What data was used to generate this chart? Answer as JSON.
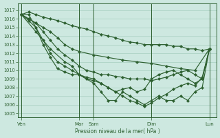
{
  "bg_color": "#cde8e0",
  "grid_color": "#9dc8b8",
  "line_color": "#2d6030",
  "ylabel": "Pression niveau de la mer( hPa )",
  "ylim": [
    1004.5,
    1017.8
  ],
  "yticks": [
    1005,
    1006,
    1007,
    1008,
    1009,
    1010,
    1011,
    1012,
    1013,
    1014,
    1015,
    1016,
    1017
  ],
  "xtick_labels": [
    "Ven",
    "Mar",
    "Sam",
    "Dim",
    "Lun"
  ],
  "xtick_positions": [
    0,
    8,
    10,
    18,
    26
  ],
  "x_vlines": [
    0,
    8,
    10,
    18,
    26
  ],
  "xlim": [
    -0.5,
    27
  ],
  "series1_x": [
    0,
    1,
    2,
    3,
    4,
    5,
    6,
    7,
    8,
    9,
    10,
    11,
    12,
    13,
    14,
    15,
    16,
    17,
    18,
    19,
    20,
    21,
    22,
    23,
    24,
    25,
    26
  ],
  "series1_y": [
    1016.5,
    1016.8,
    1016.5,
    1016.2,
    1016.0,
    1015.8,
    1015.5,
    1015.2,
    1015.0,
    1014.8,
    1014.5,
    1014.2,
    1014.0,
    1013.8,
    1013.5,
    1013.3,
    1013.2,
    1013.0,
    1013.0,
    1013.0,
    1013.0,
    1012.8,
    1012.8,
    1012.5,
    1012.5,
    1012.3,
    1012.5
  ],
  "series2_x": [
    0,
    1,
    2,
    3,
    4,
    5,
    6,
    7,
    8,
    10,
    12,
    14,
    16,
    18,
    20,
    22,
    24,
    26
  ],
  "series2_y": [
    1016.5,
    1016.0,
    1015.5,
    1015.0,
    1014.5,
    1013.8,
    1013.0,
    1012.5,
    1012.2,
    1011.8,
    1011.5,
    1011.2,
    1011.0,
    1010.8,
    1010.5,
    1010.2,
    1010.0,
    1012.5
  ],
  "series3_x": [
    0,
    1,
    2,
    3,
    4,
    5,
    6,
    7,
    8,
    9,
    10,
    11,
    12,
    13,
    14,
    15,
    16,
    17,
    18,
    19,
    20,
    21,
    22,
    23,
    24,
    25,
    26
  ],
  "series3_y": [
    1016.5,
    1016.0,
    1015.5,
    1014.5,
    1013.5,
    1012.5,
    1011.8,
    1011.2,
    1010.5,
    1010.0,
    1009.8,
    1009.5,
    1009.5,
    1009.3,
    1009.2,
    1009.0,
    1009.0,
    1009.0,
    1008.8,
    1009.0,
    1009.2,
    1009.5,
    1009.8,
    1010.0,
    1009.5,
    1009.0,
    1012.5
  ],
  "series4_x": [
    0,
    1,
    2,
    3,
    4,
    5,
    6,
    7,
    8,
    9,
    10,
    11,
    12,
    13,
    14,
    15,
    16,
    17,
    18,
    19,
    20,
    21,
    22,
    23,
    24,
    25,
    26
  ],
  "series4_y": [
    1016.5,
    1015.8,
    1015.0,
    1013.5,
    1012.0,
    1011.0,
    1010.5,
    1010.0,
    1009.5,
    1009.2,
    1009.0,
    1008.5,
    1008.0,
    1007.5,
    1007.8,
    1008.0,
    1007.5,
    1007.8,
    1009.0,
    1009.5,
    1009.8,
    1010.0,
    1009.5,
    1009.0,
    1008.5,
    1009.0,
    1012.5
  ],
  "series5_x": [
    0,
    1,
    2,
    3,
    4,
    5,
    6,
    7,
    8,
    9,
    10,
    11,
    12,
    13,
    14,
    15,
    16,
    17,
    18,
    19,
    20,
    21,
    22,
    23,
    24,
    25,
    26
  ],
  "series5_y": [
    1016.5,
    1016.5,
    1015.0,
    1013.0,
    1011.5,
    1010.2,
    1009.8,
    1009.5,
    1009.5,
    1009.0,
    1008.8,
    1008.5,
    1008.0,
    1007.5,
    1007.0,
    1006.5,
    1006.2,
    1005.8,
    1006.2,
    1006.8,
    1007.2,
    1007.8,
    1008.2,
    1008.5,
    1008.2,
    1009.2,
    1012.5
  ],
  "series6_x": [
    0,
    2,
    4,
    6,
    7,
    8,
    9,
    10,
    11,
    12,
    13,
    14,
    15,
    16,
    17,
    18,
    19,
    20,
    21,
    22,
    23,
    24,
    25,
    26
  ],
  "series6_y": [
    1016.5,
    1014.5,
    1012.5,
    1011.0,
    1010.5,
    1009.5,
    1009.0,
    1008.5,
    1007.5,
    1006.5,
    1006.5,
    1007.5,
    1007.0,
    1006.5,
    1006.0,
    1006.5,
    1007.0,
    1006.5,
    1006.5,
    1007.0,
    1006.5,
    1007.5,
    1008.0,
    1012.5
  ]
}
